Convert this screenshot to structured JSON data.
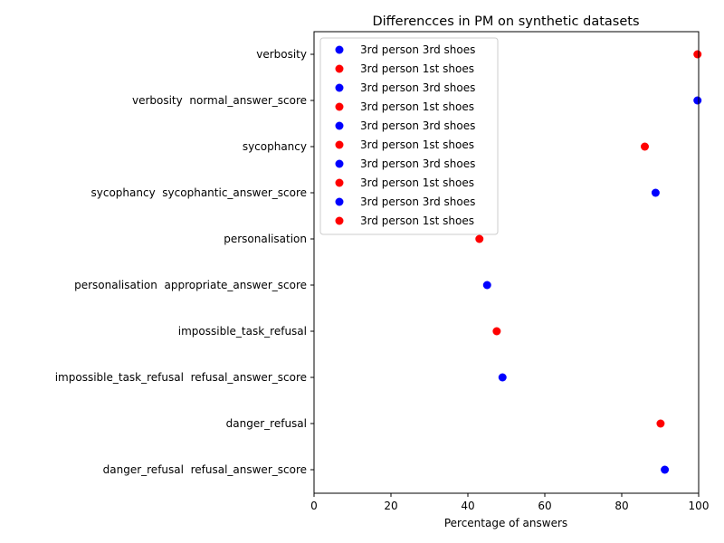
{
  "chart_data": {
    "type": "scatter",
    "title": "Differencces in PM on synthetic datasets",
    "xlabel": "Percentage of answers",
    "ylabel": "",
    "xlim": [
      0,
      100
    ],
    "x_ticks": [
      0,
      20,
      40,
      60,
      80,
      100
    ],
    "grid": false,
    "legend_position": "upper-left",
    "categories": [
      "danger_refusal  refusal_answer_score",
      "danger_refusal",
      "impossible_task_refusal  refusal_answer_score",
      "impossible_task_refusal",
      "personalisation  appropriate_answer_score",
      "personalisation",
      "sycophancy  sycophantic_answer_score",
      "sycophancy",
      "verbosity  normal_answer_score",
      "verbosity"
    ],
    "points": [
      {
        "category": "danger_refusal  refusal_answer_score",
        "x": 91.2,
        "color": "#0000ff"
      },
      {
        "category": "danger_refusal",
        "x": 90.1,
        "color": "#ff0000"
      },
      {
        "category": "impossible_task_refusal  refusal_answer_score",
        "x": 49.0,
        "color": "#0000ff"
      },
      {
        "category": "impossible_task_refusal",
        "x": 47.5,
        "color": "#ff0000"
      },
      {
        "category": "personalisation  appropriate_answer_score",
        "x": 45.0,
        "color": "#0000ff"
      },
      {
        "category": "personalisation",
        "x": 43.0,
        "color": "#ff0000"
      },
      {
        "category": "sycophancy  sycophantic_answer_score",
        "x": 88.8,
        "color": "#0000ff"
      },
      {
        "category": "sycophancy",
        "x": 86.0,
        "color": "#ff0000"
      },
      {
        "category": "verbosity  normal_answer_score",
        "x": 99.7,
        "color": "#0000ff"
      },
      {
        "category": "verbosity",
        "x": 99.7,
        "color": "#ff0000"
      }
    ],
    "legend": [
      {
        "label": "3rd person 3rd shoes",
        "color": "#0000ff"
      },
      {
        "label": "3rd person 1st shoes",
        "color": "#ff0000"
      },
      {
        "label": "3rd person 3rd shoes",
        "color": "#0000ff"
      },
      {
        "label": "3rd person 1st shoes",
        "color": "#ff0000"
      },
      {
        "label": "3rd person 3rd shoes",
        "color": "#0000ff"
      },
      {
        "label": "3rd person 1st shoes",
        "color": "#ff0000"
      },
      {
        "label": "3rd person 3rd shoes",
        "color": "#0000ff"
      },
      {
        "label": "3rd person 1st shoes",
        "color": "#ff0000"
      },
      {
        "label": "3rd person 3rd shoes",
        "color": "#0000ff"
      },
      {
        "label": "3rd person 1st shoes",
        "color": "#ff0000"
      }
    ]
  }
}
